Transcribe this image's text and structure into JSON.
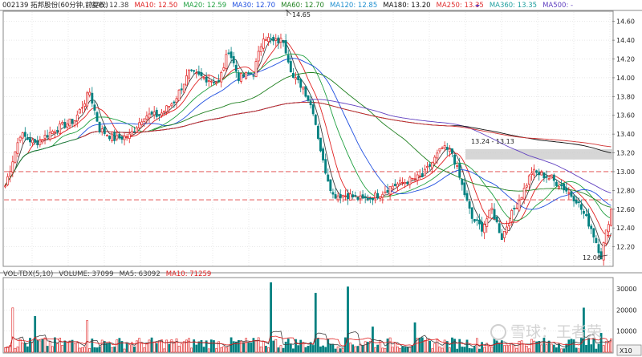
{
  "header": {
    "ticker": "002139",
    "name": "拓邦股份",
    "period": "(60分钟,前复权)",
    "ma_legend": [
      {
        "label": "MA5: 12.38",
        "color": "#404040"
      },
      {
        "label": "MA10: 12.50",
        "color": "#e02020"
      },
      {
        "label": "MA20: 12.59",
        "color": "#20a040"
      },
      {
        "label": "MA30: 12.70",
        "color": "#2050e0"
      },
      {
        "label": "MA60: 12.70",
        "color": "#208020"
      },
      {
        "label": "MA120: 12.85",
        "color": "#2090d0"
      },
      {
        "label": "MA180: 13.20",
        "color": "#101010"
      },
      {
        "label": "MA250: 13.35",
        "color": "#e03030"
      },
      {
        "label": "MA360: 13.35",
        "color": "#20a0a0"
      },
      {
        "label": "MA500: -",
        "color": "#6040c0"
      }
    ]
  },
  "volume_header": {
    "items": [
      {
        "label": "VOL-TDX(5,10)",
        "color": "#404040"
      },
      {
        "label": "VOLUME: 37099",
        "color": "#404040"
      },
      {
        "label": "MA5: 63092",
        "color": "#404040"
      },
      {
        "label": "MA10: 71259",
        "color": "#e02020"
      }
    ]
  },
  "annotations": {
    "high": "14.65",
    "low": "12.06",
    "zone": "13.24 - 13.13"
  },
  "x10_button": "X10",
  "watermark": "雪球：王者荣",
  "colors": {
    "up": "#e02020",
    "down": "#008080",
    "grid": "#d9d9d9",
    "dashed": "#e04040"
  },
  "chart_data": [
    {
      "type": "candlestick",
      "title": "002139 拓邦股份 (60分钟,前复权)",
      "ylim": [
        12.0,
        14.7
      ],
      "yticks": [
        12.2,
        12.4,
        12.6,
        12.8,
        13.0,
        13.2,
        13.4,
        13.6,
        13.8,
        14.0,
        14.2,
        14.4,
        14.6
      ],
      "ytick_labels": [
        "12.20",
        "12.40",
        "12.60",
        "12.80",
        "13.00",
        "13.20",
        "13.40",
        "13.60",
        "13.80",
        "14.00",
        "14.20",
        "14.40",
        "14.60"
      ],
      "horizontal_lines": [
        13.0,
        12.7
      ],
      "zone": [
        13.13,
        13.24
      ],
      "close_keypoints": [
        [
          0,
          12.85
        ],
        [
          6,
          13.4
        ],
        [
          12,
          13.3
        ],
        [
          20,
          13.45
        ],
        [
          28,
          13.55
        ],
        [
          34,
          13.85
        ],
        [
          38,
          13.45
        ],
        [
          44,
          13.35
        ],
        [
          50,
          13.38
        ],
        [
          56,
          13.6
        ],
        [
          62,
          13.6
        ],
        [
          68,
          13.75
        ],
        [
          74,
          14.05
        ],
        [
          80,
          14.0
        ],
        [
          86,
          13.95
        ],
        [
          90,
          14.3
        ],
        [
          94,
          14.0
        ],
        [
          100,
          14.05
        ],
        [
          104,
          14.45
        ],
        [
          108,
          14.38
        ],
        [
          112,
          14.4
        ],
        [
          116,
          14.0
        ],
        [
          120,
          13.9
        ],
        [
          124,
          13.65
        ],
        [
          128,
          13.1
        ],
        [
          132,
          12.75
        ],
        [
          138,
          12.75
        ],
        [
          144,
          12.7
        ],
        [
          150,
          12.75
        ],
        [
          156,
          12.85
        ],
        [
          162,
          12.9
        ],
        [
          168,
          12.95
        ],
        [
          172,
          13.1
        ],
        [
          176,
          13.25
        ],
        [
          180,
          13.2
        ],
        [
          184,
          12.85
        ],
        [
          188,
          12.5
        ],
        [
          192,
          12.4
        ],
        [
          196,
          12.6
        ],
        [
          200,
          12.3
        ],
        [
          204,
          12.55
        ],
        [
          208,
          12.75
        ],
        [
          212,
          13.0
        ],
        [
          218,
          12.95
        ],
        [
          224,
          12.85
        ],
        [
          230,
          12.7
        ],
        [
          236,
          12.4
        ],
        [
          240,
          12.1
        ],
        [
          242,
          12.35
        ],
        [
          244,
          12.6
        ]
      ],
      "volume": {
        "ylim": [
          0,
          35000
        ],
        "yticks": [
          10000,
          20000,
          30000
        ],
        "ytick_labels": [
          "10000",
          "20000",
          "30000"
        ],
        "spikes": [
          [
            3,
            21000
          ],
          [
            12,
            17000
          ],
          [
            33,
            15000
          ],
          [
            107,
            33000
          ],
          [
            125,
            28000
          ],
          [
            138,
            31000
          ],
          [
            148,
            12000
          ],
          [
            165,
            14000
          ],
          [
            233,
            21000
          ],
          [
            240,
            9000
          ]
        ]
      }
    }
  ]
}
